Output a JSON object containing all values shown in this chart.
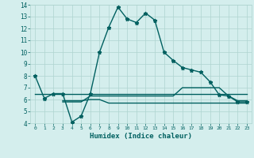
{
  "xlabel": "Humidex (Indice chaleur)",
  "line1_x": [
    0,
    1,
    2,
    3,
    4,
    5,
    6,
    7,
    8,
    9,
    10,
    11,
    12,
    13,
    14,
    15,
    16,
    17,
    18,
    19,
    20,
    21,
    22,
    23
  ],
  "line1_y": [
    8,
    6.1,
    6.5,
    6.5,
    4.1,
    4.6,
    6.5,
    10.0,
    12.1,
    13.8,
    12.8,
    12.5,
    13.3,
    12.7,
    10.0,
    9.3,
    8.7,
    8.5,
    8.3,
    7.5,
    6.4,
    6.3,
    5.8,
    5.8
  ],
  "line2_x": [
    0,
    1,
    2,
    3,
    6,
    7,
    8,
    9,
    10,
    11,
    12,
    13,
    14,
    15,
    16,
    17,
    18,
    19,
    20,
    21,
    22,
    23
  ],
  "line2_y": [
    6.5,
    6.5,
    6.5,
    6.5,
    6.5,
    6.5,
    6.5,
    6.5,
    6.5,
    6.5,
    6.5,
    6.5,
    6.5,
    6.5,
    6.5,
    6.5,
    6.5,
    6.5,
    6.5,
    6.5,
    6.5,
    6.5
  ],
  "line3_x": [
    3,
    4,
    5,
    6,
    7,
    8,
    9,
    10,
    11,
    12,
    13,
    14,
    15,
    16,
    17,
    18,
    19,
    20,
    21,
    22,
    23
  ],
  "line3_y": [
    5.8,
    5.8,
    5.8,
    6.3,
    6.3,
    6.3,
    6.3,
    6.3,
    6.3,
    6.3,
    6.3,
    6.3,
    6.3,
    7.0,
    7.0,
    7.0,
    7.0,
    7.0,
    6.3,
    5.9,
    5.9
  ],
  "line4_x": [
    3,
    4,
    5,
    6,
    7,
    8,
    9,
    10,
    11,
    12,
    13,
    14,
    19,
    20,
    21,
    22,
    23
  ],
  "line4_y": [
    5.9,
    5.9,
    5.9,
    6.0,
    6.0,
    5.7,
    5.7,
    5.7,
    5.7,
    5.7,
    5.7,
    5.7,
    5.7,
    5.7,
    5.7,
    5.7,
    5.7
  ],
  "line_color": "#006060",
  "bg_color": "#d4eeed",
  "grid_color": "#aed4d0",
  "ylim": [
    4,
    14
  ],
  "xlim": [
    -0.5,
    23.5
  ],
  "yticks": [
    4,
    5,
    6,
    7,
    8,
    9,
    10,
    11,
    12,
    13,
    14
  ],
  "xticks": [
    0,
    1,
    2,
    3,
    4,
    5,
    6,
    7,
    8,
    9,
    10,
    11,
    12,
    13,
    14,
    15,
    16,
    17,
    18,
    19,
    20,
    21,
    22,
    23
  ]
}
